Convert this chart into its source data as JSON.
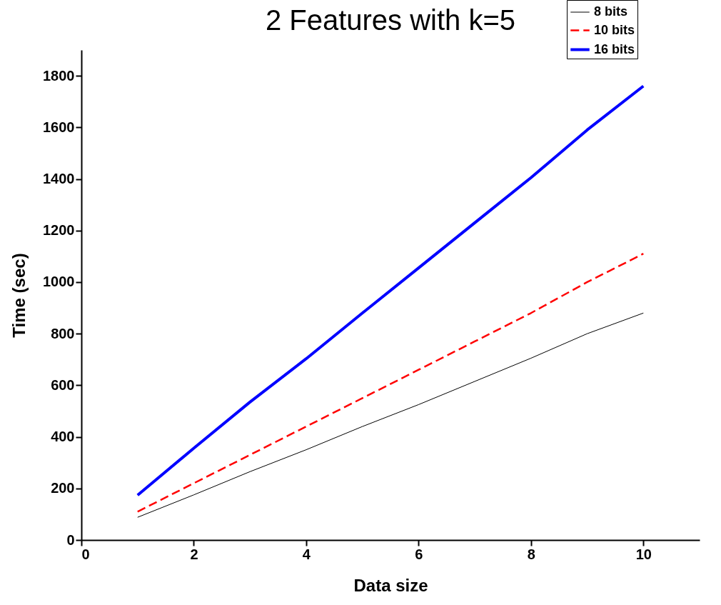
{
  "chart_data": {
    "type": "line",
    "title": "2 Features with k=5",
    "xlabel": "Data size",
    "ylabel": "Time (sec)",
    "x": [
      1,
      2,
      3,
      4,
      5,
      6,
      7,
      8,
      9,
      10
    ],
    "series": [
      {
        "name": "8 bits",
        "color": "#000000",
        "line_style": "solid",
        "values": [
          88,
          175,
          265,
          350,
          440,
          525,
          615,
          705,
          800,
          880
        ]
      },
      {
        "name": "10 bits",
        "color": "#ff0000",
        "line_style": "dashed",
        "values": [
          110,
          220,
          330,
          440,
          550,
          660,
          770,
          880,
          1000,
          1110
        ]
      },
      {
        "name": "16 bits",
        "color": "#0000ff",
        "line_style": "solid",
        "values": [
          174,
          356,
          535,
          703,
          880,
          1055,
          1230,
          1405,
          1590,
          1760
        ]
      }
    ],
    "xlim": [
      0,
      11
    ],
    "xticks": [
      0,
      2,
      4,
      6,
      8,
      10
    ],
    "ylim": [
      0,
      1900
    ],
    "yticks": [
      0,
      200,
      400,
      600,
      800,
      1000,
      1200,
      1400,
      1600,
      1800
    ],
    "grid": false,
    "legend": "top right",
    "marker": "none"
  }
}
